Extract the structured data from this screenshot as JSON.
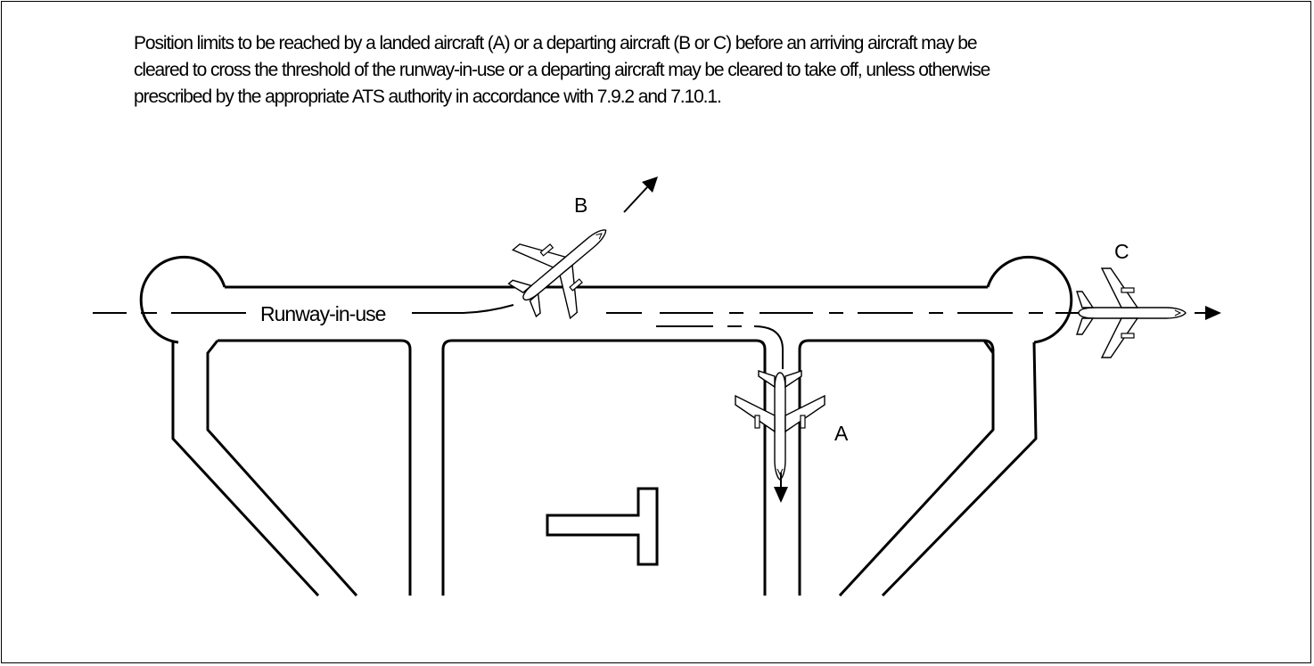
{
  "caption": {
    "line1": "Position limits to be reached by a landed aircraft (A) or a departing aircraft (B or C) before an arriving aircraft may be",
    "line2": "cleared to cross the threshold of the runway-in-use or a departing aircraft may be cleared to take off, unless otherwise",
    "line3": "prescribed by the appropriate ATS authority in accordance with 7.9.2 and 7.10.1."
  },
  "labels": {
    "runway": "Runway-in-use",
    "aircraft_a": "A",
    "aircraft_b": "B",
    "aircraft_c": "C"
  }
}
